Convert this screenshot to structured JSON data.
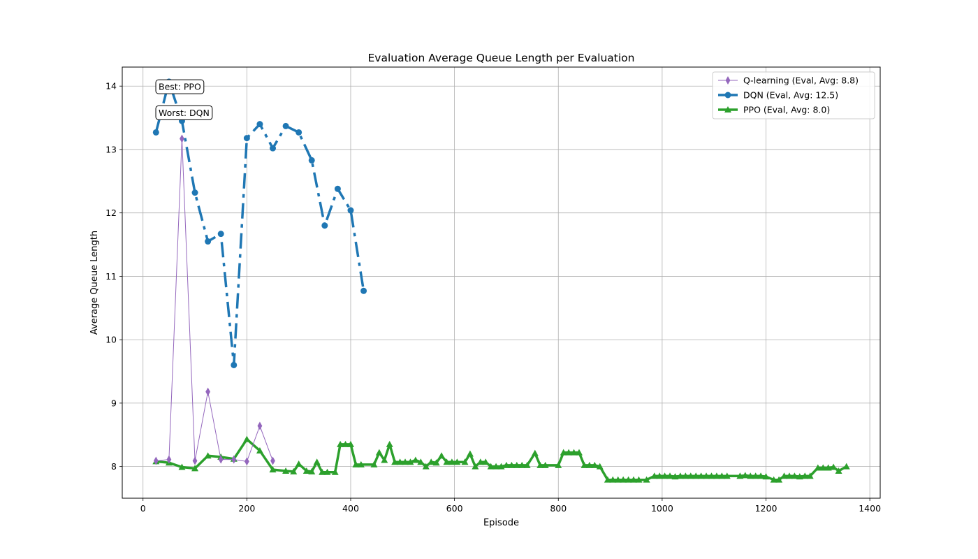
{
  "chart_data": {
    "type": "line",
    "title": "Evaluation Average Queue Length per Evaluation",
    "xlabel": "Episode",
    "ylabel": "Average Queue Length",
    "xlim": [
      -40,
      1420
    ],
    "ylim": [
      7.5,
      14.3
    ],
    "xticks": [
      0,
      200,
      400,
      600,
      800,
      1000,
      1200,
      1400
    ],
    "yticks": [
      8,
      9,
      10,
      11,
      12,
      13,
      14
    ],
    "grid": true,
    "legend_position": "top-right",
    "series": [
      {
        "name": "Q-learning (Eval, Avg: 8.8)",
        "color": "#9467bd",
        "marker": "thin-diamond",
        "line_style": "solid",
        "line_width": 1,
        "x": [
          25,
          50,
          75,
          100,
          125,
          150,
          175,
          200,
          225,
          250
        ],
        "y": [
          8.09,
          8.11,
          13.17,
          8.09,
          9.18,
          8.11,
          8.11,
          8.08,
          8.64,
          8.09
        ]
      },
      {
        "name": "DQN (Eval, Avg: 12.5)",
        "color": "#1f77b4",
        "marker": "circle",
        "line_style": "dashdot",
        "line_width": 3.5,
        "x": [
          25,
          50,
          75,
          100,
          125,
          150,
          175,
          200,
          225,
          250,
          275,
          300,
          325,
          350,
          375,
          400,
          425
        ],
        "y": [
          13.27,
          14.07,
          13.45,
          12.32,
          11.55,
          11.67,
          9.6,
          13.18,
          13.4,
          13.02,
          13.37,
          13.27,
          12.83,
          11.8,
          12.38,
          12.04,
          10.77
        ]
      },
      {
        "name": "PPO (Eval, Avg: 8.0)",
        "color": "#2ca02c",
        "marker": "triangle",
        "line_style": "solid",
        "line_width": 3.5,
        "x": [
          25,
          50,
          75,
          100,
          125,
          150,
          175,
          200,
          225,
          250,
          275,
          290,
          300,
          315,
          325,
          335,
          345,
          355,
          370,
          380,
          390,
          400,
          410,
          420,
          445,
          455,
          465,
          475,
          485,
          495,
          505,
          515,
          525,
          535,
          545,
          555,
          565,
          575,
          585,
          595,
          605,
          620,
          630,
          640,
          650,
          660,
          670,
          680,
          690,
          700,
          710,
          720,
          730,
          740,
          755,
          765,
          775,
          800,
          810,
          820,
          830,
          840,
          850,
          860,
          870,
          880,
          895,
          905,
          915,
          925,
          935,
          945,
          955,
          970,
          985,
          995,
          1005,
          1015,
          1025,
          1035,
          1045,
          1055,
          1065,
          1075,
          1085,
          1095,
          1105,
          1115,
          1125,
          1150,
          1160,
          1170,
          1180,
          1190,
          1200,
          1215,
          1225,
          1235,
          1245,
          1255,
          1265,
          1275,
          1285,
          1300,
          1310,
          1320,
          1330,
          1340,
          1355
        ],
        "y": [
          8.08,
          8.06,
          7.99,
          7.97,
          8.17,
          8.15,
          8.12,
          8.43,
          8.25,
          7.95,
          7.93,
          7.92,
          8.04,
          7.93,
          7.92,
          8.07,
          7.91,
          7.91,
          7.91,
          8.35,
          8.35,
          8.35,
          8.03,
          8.03,
          8.03,
          8.22,
          8.1,
          8.35,
          8.07,
          8.07,
          8.07,
          8.07,
          8.1,
          8.07,
          8.0,
          8.07,
          8.06,
          8.17,
          8.07,
          8.07,
          8.07,
          8.07,
          8.2,
          8.0,
          8.07,
          8.07,
          8.0,
          8.0,
          8.0,
          8.02,
          8.02,
          8.02,
          8.02,
          8.02,
          8.21,
          8.02,
          8.02,
          8.02,
          8.22,
          8.22,
          8.22,
          8.22,
          8.02,
          8.02,
          8.02,
          8.0,
          7.79,
          7.79,
          7.79,
          7.79,
          7.79,
          7.79,
          7.79,
          7.79,
          7.85,
          7.85,
          7.85,
          7.85,
          7.84,
          7.85,
          7.85,
          7.85,
          7.85,
          7.85,
          7.85,
          7.85,
          7.85,
          7.85,
          7.85,
          7.85,
          7.86,
          7.85,
          7.85,
          7.85,
          7.84,
          7.79,
          7.79,
          7.85,
          7.85,
          7.85,
          7.84,
          7.85,
          7.85,
          7.98,
          7.98,
          7.98,
          7.99,
          7.93,
          8.0
        ]
      }
    ],
    "annotations": [
      {
        "text": "Best: PPO",
        "x": 30,
        "y": 13.99
      },
      {
        "text": "Worst: DQN",
        "x": 30,
        "y": 13.58
      }
    ]
  }
}
